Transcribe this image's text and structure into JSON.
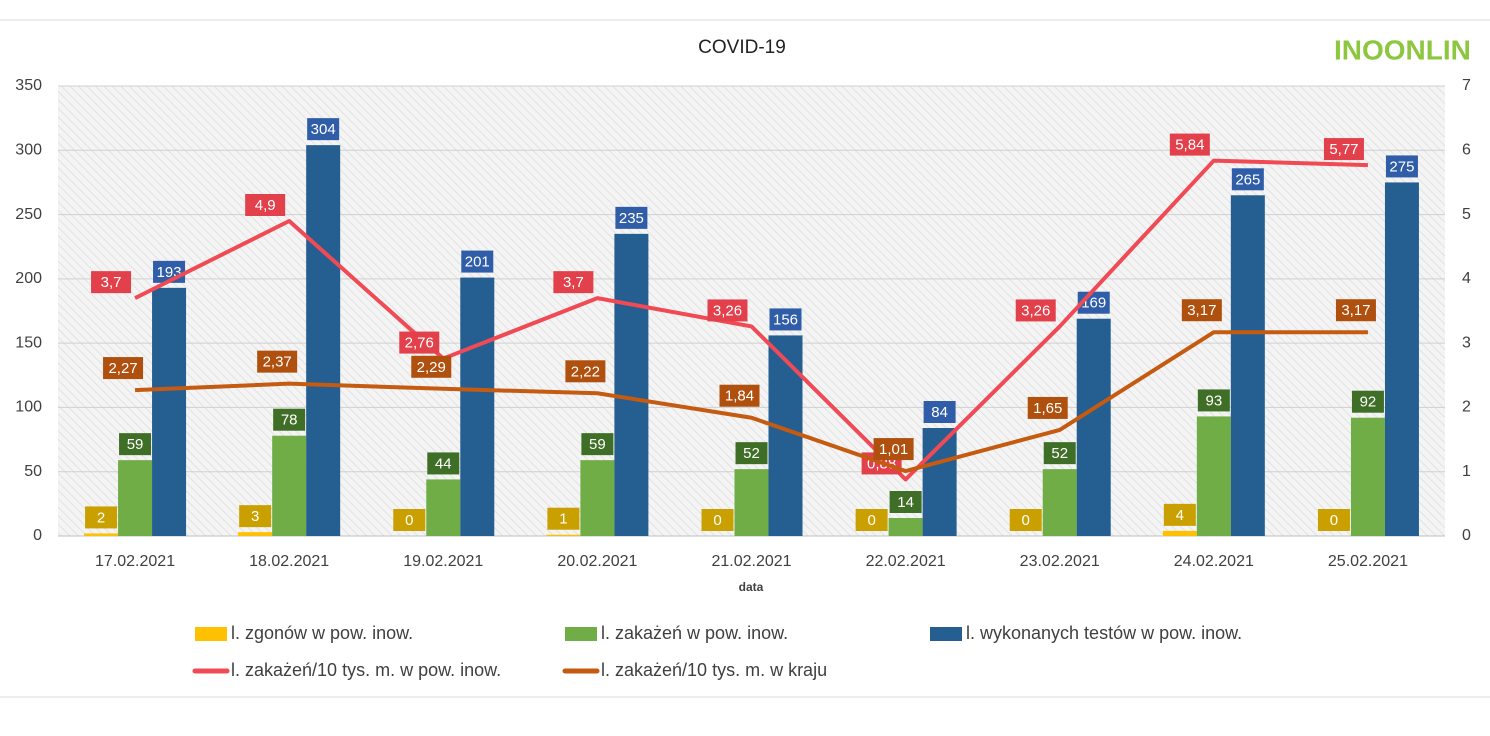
{
  "chart_data": {
    "type": "bar-line",
    "title": "COVID-19",
    "logo": "INOONLIN",
    "xlabel": "data",
    "categories": [
      "17.02.2021",
      "18.02.2021",
      "19.02.2021",
      "20.02.2021",
      "21.02.2021",
      "22.02.2021",
      "23.02.2021",
      "24.02.2021",
      "25.02.2021"
    ],
    "series": [
      {
        "name": "l. zgonów w pow. inow.",
        "type": "bar",
        "color": "#ffc000",
        "label_color": "#c9a000",
        "values": [
          2,
          3,
          0,
          1,
          0,
          0,
          0,
          4,
          0
        ]
      },
      {
        "name": "l. zakażeń w pow. inow.",
        "type": "bar",
        "color": "#70ad47",
        "label_color": "#3f6f27",
        "values": [
          59,
          78,
          44,
          59,
          52,
          14,
          52,
          93,
          92
        ]
      },
      {
        "name": "l. wykonanych testów w pow. inow.",
        "type": "bar",
        "color": "#255e91",
        "label_color": "#2f5da8",
        "values": [
          193,
          304,
          201,
          235,
          156,
          84,
          169,
          265,
          275
        ]
      },
      {
        "name": "l. zakażeń/10 tys. m. w pow. inow.",
        "type": "line",
        "axis": "y2",
        "color": "#f04a55",
        "label_color": "#e2404b",
        "values": [
          3.7,
          4.9,
          2.76,
          3.7,
          3.26,
          0.88,
          3.26,
          5.84,
          5.77
        ],
        "value_labels": [
          "3,7",
          "4,9",
          "2,76",
          "3,7",
          "3,26",
          "0,88",
          "3,26",
          "5,84",
          "5,77"
        ]
      },
      {
        "name": "l. zakażeń/10 tys. m. w kraju",
        "type": "line",
        "axis": "y2",
        "color": "#c55a11",
        "label_color": "#b0500e",
        "values": [
          2.27,
          2.37,
          2.29,
          2.22,
          1.84,
          1.01,
          1.65,
          3.17,
          3.17
        ],
        "value_labels": [
          "2,27",
          "2,37",
          "2,29",
          "2,22",
          "1,84",
          "1,01",
          "1,65",
          "3,17",
          "3,17"
        ]
      }
    ],
    "ylim": [
      0,
      350
    ],
    "yticks": [
      0,
      50,
      100,
      150,
      200,
      250,
      300,
      350
    ],
    "y2lim": [
      0,
      7
    ],
    "y2ticks": [
      0,
      1,
      2,
      3,
      4,
      5,
      6,
      7
    ],
    "grid": true
  }
}
